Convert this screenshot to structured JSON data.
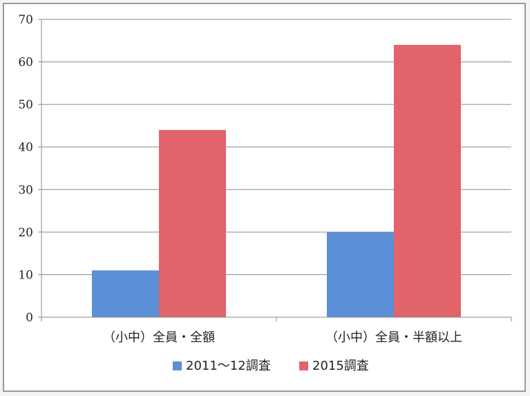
{
  "chart_data": {
    "type": "bar",
    "categories": [
      "（小中）全員・全額",
      "（小中）全員・半額以上"
    ],
    "series": [
      {
        "name": "2011～12調査",
        "values": [
          11,
          20
        ],
        "color": "#5b8fd6"
      },
      {
        "name": "2015調査",
        "values": [
          44,
          64
        ],
        "color": "#e0646a"
      }
    ],
    "title": "",
    "xlabel": "",
    "ylabel": "",
    "ylim": [
      0,
      70
    ],
    "yticks": [
      0,
      10,
      20,
      30,
      40,
      50,
      60,
      70
    ],
    "grid": true,
    "legend_position": "bottom"
  }
}
